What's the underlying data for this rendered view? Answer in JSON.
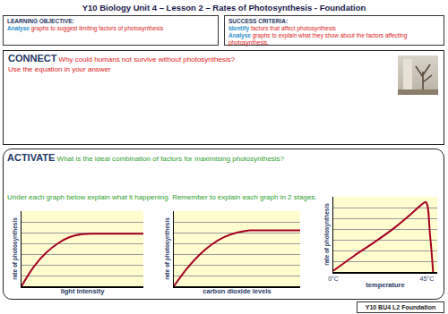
{
  "header": {
    "title": "Y10 Biology Unit 4 – Lesson 2 – Rates of Photosynthesis - Foundation"
  },
  "learning_objective": {
    "heading": "LEARNING OBJECTIVE:",
    "verb": "Analyse",
    "text": "graphs to suggest limiting factors of photosynthesis"
  },
  "success_criteria": {
    "heading": "SUCCESS CRITERIA:",
    "items": [
      {
        "verb": "Identify",
        "text": "factors that affect photosynthesis"
      },
      {
        "verb": "Analyse",
        "text": "graphs to explain what they show about the factors affecting photosynthesis."
      }
    ]
  },
  "connect": {
    "heading": "CONNECT",
    "question": "Why could humans not survive without photosynthesis?",
    "note": "Use the equation in your answer"
  },
  "activate": {
    "heading": "ACTIVATE",
    "question": "What is the ideal combination of factors for maximising photosynthesis?",
    "instruction": "Under each graph below explain what it happening. Remember to explain each graph in 2 stages."
  },
  "footer": {
    "text": "Y10 BU4 L2 Foundation"
  },
  "chart_data": [
    {
      "type": "line",
      "x_label": "light intensity",
      "y_label": "rate of photosynthesis",
      "color": "#a50021",
      "x": [
        0,
        1,
        2,
        3,
        4,
        5,
        6,
        7,
        8,
        9,
        10
      ],
      "values": [
        0,
        1.8,
        3.1,
        4.0,
        4.6,
        4.85,
        4.9,
        4.9,
        4.9,
        4.9,
        4.9
      ],
      "xlim": [
        0,
        10
      ],
      "ylim": [
        0,
        7
      ],
      "yticks": [
        0,
        1,
        2,
        3,
        4,
        5,
        6,
        7
      ],
      "grid": true,
      "tick_labels": false
    },
    {
      "type": "line",
      "x_label": "carbon dioxide levels",
      "y_label": "rate of photosynthesis",
      "color": "#a50021",
      "x": [
        0,
        1,
        2,
        3,
        4,
        5,
        6,
        7,
        8,
        9,
        10
      ],
      "values": [
        0,
        1.6,
        2.9,
        3.9,
        4.6,
        5.0,
        5.2,
        5.2,
        5.2,
        5.2,
        5.2
      ],
      "xlim": [
        0,
        10
      ],
      "ylim": [
        0,
        7
      ],
      "yticks": [
        0,
        1,
        2,
        3,
        4,
        5,
        6,
        7
      ],
      "grid": true,
      "tick_labels": false
    },
    {
      "type": "line",
      "x_label": "temperature",
      "y_label": "rate of photosynthesis",
      "color": "#a50021",
      "x": [
        0,
        10,
        20,
        30,
        38,
        42,
        44.5,
        46.5,
        48
      ],
      "values": [
        0.1,
        1.5,
        2.8,
        4.2,
        5.5,
        6.2,
        6.5,
        3.5,
        0
      ],
      "xlim": [
        0,
        50
      ],
      "ylim": [
        0,
        7
      ],
      "yticks": [
        0,
        1,
        2,
        3,
        4,
        5,
        6,
        7
      ],
      "xticks": [
        {
          "value": 0,
          "label": "0°C"
        },
        {
          "value": 45,
          "label": "45°C"
        }
      ],
      "grid": true,
      "tick_labels": "x"
    }
  ]
}
